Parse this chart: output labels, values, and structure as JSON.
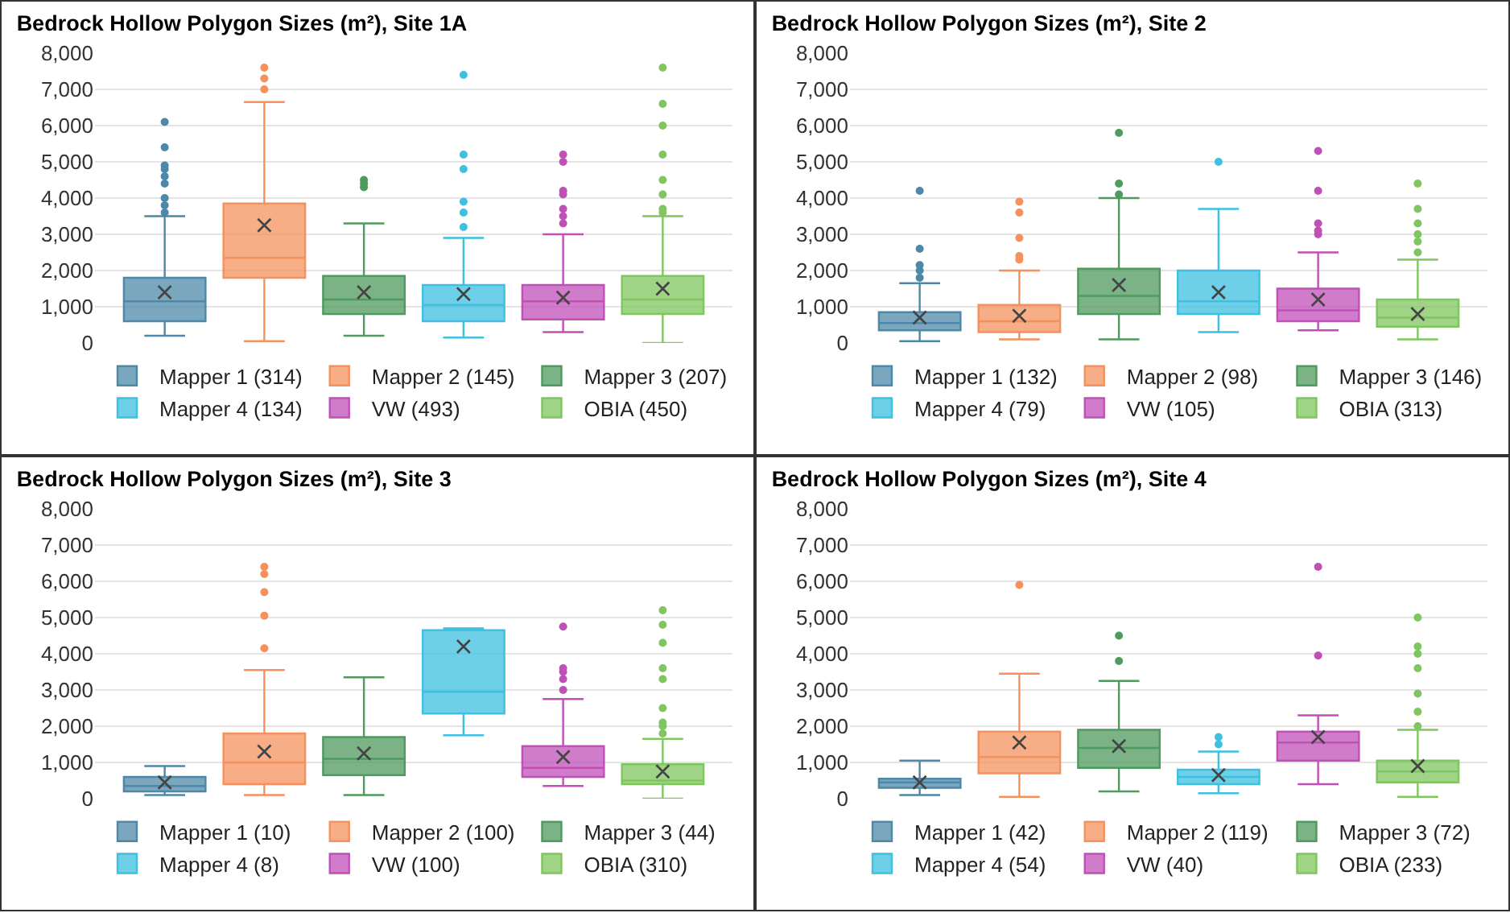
{
  "chart_data": [
    {
      "type": "box",
      "title": "Bedrock Hollow Polygon Sizes (m²), Site 1A",
      "categories": [
        null
      ],
      "ylim": [
        0,
        8000
      ],
      "yticks": [
        {
          "value": 0,
          "label": "0"
        },
        {
          "value": 1000,
          "label": "1,000"
        },
        {
          "value": 2000,
          "label": "2,000"
        },
        {
          "value": 3000,
          "label": "3,000"
        },
        {
          "value": 4000,
          "label": "4,000"
        },
        {
          "value": 5000,
          "label": "5,000"
        },
        {
          "value": 6000,
          "label": "6,000"
        },
        {
          "value": 7000,
          "label": "7,000"
        },
        {
          "value": 8000,
          "label": "8,000"
        }
      ],
      "grid": "y",
      "legend": "bottom",
      "series": [
        {
          "name": "Mapper 1 (314)",
          "color": "#4e88a8",
          "boxes": [
            {
              "low": 200,
              "q1": 600,
              "median": 1150,
              "q3": 1800,
              "high": 3500,
              "mean": 1400,
              "outliers": [
                3600,
                3800,
                4000,
                4400,
                4600,
                4800,
                4900,
                5400,
                6100
              ]
            }
          ]
        },
        {
          "name": "Mapper 2 (145)",
          "color": "#f4915c",
          "boxes": [
            {
              "low": 50,
              "q1": 1800,
              "median": 2350,
              "q3": 3850,
              "high": 6650,
              "mean": 3250,
              "outliers": [
                7000,
                7300,
                7600
              ]
            }
          ]
        },
        {
          "name": "Mapper 3 (207)",
          "color": "#4f9a5e",
          "boxes": [
            {
              "low": 200,
              "q1": 800,
              "median": 1200,
              "q3": 1850,
              "high": 3300,
              "mean": 1400,
              "outliers": [
                4300,
                4400,
                4500
              ]
            }
          ]
        },
        {
          "name": "Mapper 4 (134)",
          "color": "#3ec0e0",
          "boxes": [
            {
              "low": 150,
              "q1": 600,
              "median": 1050,
              "q3": 1600,
              "high": 2900,
              "mean": 1350,
              "outliers": [
                3200,
                3600,
                3900,
                4800,
                5200,
                7400
              ]
            }
          ]
        },
        {
          "name": "VW (493)",
          "color": "#c050b8",
          "boxes": [
            {
              "low": 300,
              "q1": 650,
              "median": 1150,
              "q3": 1600,
              "high": 3000,
              "mean": 1250,
              "outliers": [
                3300,
                3500,
                3700,
                4100,
                4200,
                5000,
                5200
              ]
            }
          ]
        },
        {
          "name": "OBIA (450)",
          "color": "#7fc65f",
          "boxes": [
            {
              "low": 0,
              "q1": 800,
              "median": 1200,
              "q3": 1850,
              "high": 3500,
              "mean": 1500,
              "outliers": [
                3600,
                3700,
                4100,
                4500,
                5200,
                6000,
                6600,
                7600
              ]
            }
          ]
        }
      ]
    },
    {
      "type": "box",
      "title": "Bedrock Hollow Polygon Sizes (m²), Site 2",
      "categories": [
        null
      ],
      "ylim": [
        0,
        8000
      ],
      "yticks": [
        {
          "value": 0,
          "label": "0"
        },
        {
          "value": 1000,
          "label": "1,000"
        },
        {
          "value": 2000,
          "label": "2,000"
        },
        {
          "value": 3000,
          "label": "3,000"
        },
        {
          "value": 4000,
          "label": "4,000"
        },
        {
          "value": 5000,
          "label": "5,000"
        },
        {
          "value": 6000,
          "label": "6,000"
        },
        {
          "value": 7000,
          "label": "7,000"
        },
        {
          "value": 8000,
          "label": "8,000"
        }
      ],
      "grid": "y",
      "legend": "bottom",
      "series": [
        {
          "name": "Mapper 1 (132)",
          "color": "#4e88a8",
          "boxes": [
            {
              "low": 50,
              "q1": 350,
              "median": 550,
              "q3": 850,
              "high": 1650,
              "mean": 700,
              "outliers": [
                1800,
                2000,
                2150,
                2600,
                4200
              ]
            }
          ]
        },
        {
          "name": "Mapper 2 (98)",
          "color": "#f4915c",
          "boxes": [
            {
              "low": 100,
              "q1": 300,
              "median": 600,
              "q3": 1050,
              "high": 2000,
              "mean": 750,
              "outliers": [
                2300,
                2400,
                2900,
                3600,
                3900
              ]
            }
          ]
        },
        {
          "name": "Mapper 3 (146)",
          "color": "#4f9a5e",
          "boxes": [
            {
              "low": 100,
              "q1": 800,
              "median": 1300,
              "q3": 2050,
              "high": 4000,
              "mean": 1600,
              "outliers": [
                4100,
                4400,
                5800
              ]
            }
          ]
        },
        {
          "name": "Mapper 4 (79)",
          "color": "#3ec0e0",
          "boxes": [
            {
              "low": 300,
              "q1": 800,
              "median": 1150,
              "q3": 2000,
              "high": 3700,
              "mean": 1400,
              "outliers": [
                5000
              ]
            }
          ]
        },
        {
          "name": "VW (105)",
          "color": "#c050b8",
          "boxes": [
            {
              "low": 350,
              "q1": 600,
              "median": 900,
              "q3": 1500,
              "high": 2500,
              "mean": 1200,
              "outliers": [
                3000,
                3100,
                3300,
                4200,
                5300
              ]
            }
          ]
        },
        {
          "name": "OBIA (313)",
          "color": "#7fc65f",
          "boxes": [
            {
              "low": 100,
              "q1": 450,
              "median": 700,
              "q3": 1200,
              "high": 2300,
              "mean": 800,
              "outliers": [
                2500,
                2800,
                3000,
                3300,
                3700,
                4400
              ]
            }
          ]
        }
      ]
    },
    {
      "type": "box",
      "title": "Bedrock Hollow Polygon Sizes (m²), Site 3",
      "categories": [
        null
      ],
      "ylim": [
        0,
        8000
      ],
      "yticks": [
        {
          "value": 0,
          "label": "0"
        },
        {
          "value": 1000,
          "label": "1,000"
        },
        {
          "value": 2000,
          "label": "2,000"
        },
        {
          "value": 3000,
          "label": "3,000"
        },
        {
          "value": 4000,
          "label": "4,000"
        },
        {
          "value": 5000,
          "label": "5,000"
        },
        {
          "value": 6000,
          "label": "6,000"
        },
        {
          "value": 7000,
          "label": "7,000"
        },
        {
          "value": 8000,
          "label": "8,000"
        }
      ],
      "grid": "y",
      "legend": "bottom",
      "series": [
        {
          "name": "Mapper 1 (10)",
          "color": "#4e88a8",
          "boxes": [
            {
              "low": 100,
              "q1": 200,
              "median": 350,
              "q3": 600,
              "high": 900,
              "mean": 450
            }
          ]
        },
        {
          "name": "Mapper 2 (100)",
          "color": "#f4915c",
          "boxes": [
            {
              "low": 100,
              "q1": 400,
              "median": 1000,
              "q3": 1800,
              "high": 3550,
              "mean": 1300,
              "outliers": [
                4150,
                5050,
                5700,
                6200,
                6400
              ]
            }
          ]
        },
        {
          "name": "Mapper 3 (44)",
          "color": "#4f9a5e",
          "boxes": [
            {
              "low": 100,
              "q1": 650,
              "median": 1100,
              "q3": 1700,
              "high": 3350,
              "mean": 1250
            }
          ]
        },
        {
          "name": "Mapper 4 (8)",
          "color": "#3ec0e0",
          "boxes": [
            {
              "low": 1750,
              "q1": 2350,
              "median": 2950,
              "q3": 4650,
              "high": 4700,
              "mean": 4200
            }
          ]
        },
        {
          "name": "VW (100)",
          "color": "#c050b8",
          "boxes": [
            {
              "low": 350,
              "q1": 600,
              "median": 850,
              "q3": 1450,
              "high": 2750,
              "mean": 1150,
              "outliers": [
                3000,
                3300,
                3500,
                3600,
                4750
              ]
            }
          ]
        },
        {
          "name": "OBIA (310)",
          "color": "#7fc65f",
          "boxes": [
            {
              "low": 0,
              "q1": 400,
              "median": 500,
              "q3": 950,
              "high": 1650,
              "mean": 750,
              "outliers": [
                1800,
                2000,
                2100,
                2500,
                3300,
                3600,
                4300,
                4800,
                5200
              ]
            }
          ]
        }
      ]
    },
    {
      "type": "box",
      "title": "Bedrock Hollow Polygon Sizes (m²), Site 4",
      "categories": [
        null
      ],
      "ylim": [
        0,
        8000
      ],
      "yticks": [
        {
          "value": 0,
          "label": "0"
        },
        {
          "value": 1000,
          "label": "1,000"
        },
        {
          "value": 2000,
          "label": "2,000"
        },
        {
          "value": 3000,
          "label": "3,000"
        },
        {
          "value": 4000,
          "label": "4,000"
        },
        {
          "value": 5000,
          "label": "5,000"
        },
        {
          "value": 6000,
          "label": "6,000"
        },
        {
          "value": 7000,
          "label": "7,000"
        },
        {
          "value": 8000,
          "label": "8,000"
        }
      ],
      "grid": "y",
      "legend": "bottom",
      "series": [
        {
          "name": "Mapper 1 (42)",
          "color": "#4e88a8",
          "boxes": [
            {
              "low": 100,
              "q1": 300,
              "median": 450,
              "q3": 550,
              "high": 1050,
              "mean": 450
            }
          ]
        },
        {
          "name": "Mapper 2 (119)",
          "color": "#f4915c",
          "boxes": [
            {
              "low": 50,
              "q1": 700,
              "median": 1150,
              "q3": 1850,
              "high": 3450,
              "mean": 1550,
              "outliers": [
                5900
              ]
            }
          ]
        },
        {
          "name": "Mapper 3 (72)",
          "color": "#4f9a5e",
          "boxes": [
            {
              "low": 200,
              "q1": 850,
              "median": 1400,
              "q3": 1900,
              "high": 3250,
              "mean": 1450,
              "outliers": [
                3800,
                4500
              ]
            }
          ]
        },
        {
          "name": "Mapper 4 (54)",
          "color": "#3ec0e0",
          "boxes": [
            {
              "low": 150,
              "q1": 400,
              "median": 600,
              "q3": 800,
              "high": 1300,
              "mean": 650,
              "outliers": [
                1500,
                1700
              ]
            }
          ]
        },
        {
          "name": "VW (40)",
          "color": "#c050b8",
          "boxes": [
            {
              "low": 400,
              "q1": 1050,
              "median": 1550,
              "q3": 1850,
              "high": 2300,
              "mean": 1700,
              "outliers": [
                3950,
                6400
              ]
            }
          ]
        },
        {
          "name": "OBIA (233)",
          "color": "#7fc65f",
          "boxes": [
            {
              "low": 50,
              "q1": 450,
              "median": 750,
              "q3": 1050,
              "high": 1900,
              "mean": 900,
              "outliers": [
                2000,
                2400,
                2900,
                3600,
                4000,
                4200,
                5000
              ]
            }
          ]
        }
      ]
    }
  ]
}
